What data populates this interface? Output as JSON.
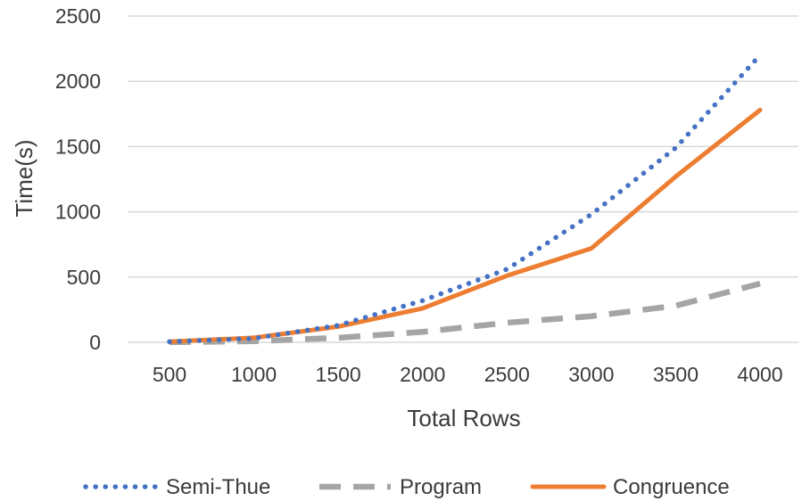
{
  "chart_data": {
    "type": "line",
    "title": "",
    "xlabel": "Total Rows",
    "ylabel": "Time(s)",
    "x": [
      500,
      1000,
      1500,
      2000,
      2500,
      3000,
      3500,
      4000
    ],
    "x_tick_labels": [
      "500",
      "1000",
      "1500",
      "2000",
      "2500",
      "3000",
      "3500",
      "4000"
    ],
    "y_tick_labels": [
      "0",
      "500",
      "1000",
      "1500",
      "2000",
      "2500"
    ],
    "ylim": [
      0,
      2500
    ],
    "grid": "horizontal",
    "legend_position": "bottom",
    "series": [
      {
        "name": "Semi-Thue",
        "values": [
          5,
          30,
          130,
          320,
          560,
          980,
          1490,
          2200
        ],
        "color": "#4472C4",
        "style": "dotted"
      },
      {
        "name": "Program",
        "values": [
          1,
          8,
          35,
          80,
          150,
          200,
          280,
          450
        ],
        "color": "#A5A5A5",
        "style": "dashed"
      },
      {
        "name": "Congruence",
        "values": [
          5,
          35,
          120,
          260,
          510,
          720,
          1270,
          1780
        ],
        "color": "#ED7D31",
        "style": "solid"
      }
    ]
  }
}
